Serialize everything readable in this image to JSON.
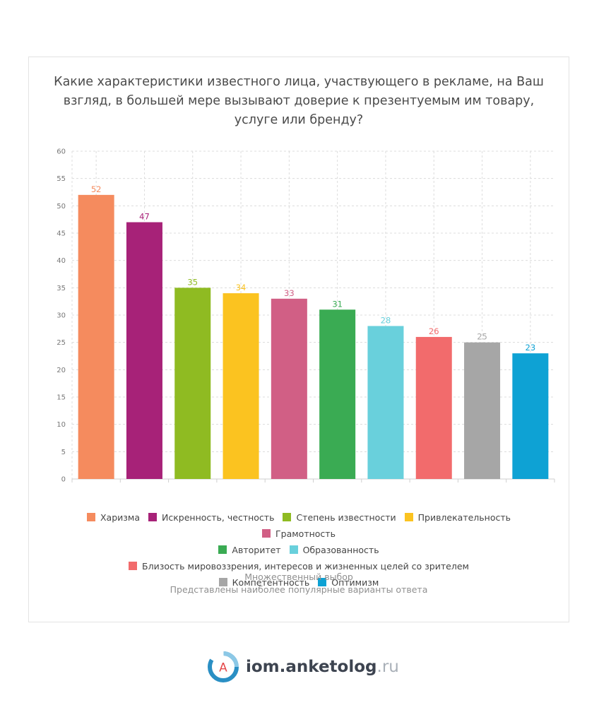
{
  "chart_data": {
    "type": "bar",
    "title": "Какие характеристики известного лица, участвующего в рекламе, на Ваш взгляд, в большей мере вызывают доверие к презентуемым им товару, услуге или бренду?",
    "categories": [
      "Харизма",
      "Искренность, честность",
      "Степень известности",
      "Привлекательность",
      "Грамотность",
      "Авторитет",
      "Образованность",
      "Близость мировоззрения, интересов и жизненных целей со зрителем",
      "Компетентность",
      "Оптимизм"
    ],
    "values": [
      52,
      47,
      35,
      34,
      33,
      31,
      28,
      26,
      25,
      23
    ],
    "colors": [
      "#f58b5e",
      "#a72278",
      "#8fbb22",
      "#fbc320",
      "#d15f85",
      "#3aab53",
      "#69d0dc",
      "#f26b6c",
      "#a6a6a6",
      "#0ea2d4"
    ],
    "ylim": [
      0,
      60
    ],
    "yticks": [
      0,
      5,
      10,
      15,
      20,
      25,
      30,
      35,
      40,
      45,
      50,
      55,
      60
    ],
    "grid": true,
    "legend_position": "bottom",
    "xlabel": "",
    "ylabel": ""
  },
  "notes": {
    "line1": "Множественный выбор",
    "line2": "Представлены наиболее популярные варианты ответа"
  },
  "brand": {
    "logo_letter": "A",
    "name": "iom.anketolog",
    "tld": ".ru"
  }
}
